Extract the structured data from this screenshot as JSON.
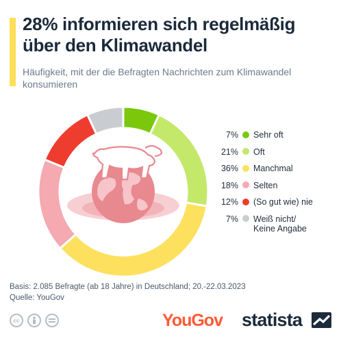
{
  "header": {
    "title": "28% informieren sich regelmäßig über den Klimawandel",
    "subtitle": "Häufigkeit, mit der die Befragten Nachrichten zum Klimawandel konsumieren"
  },
  "chart_data": {
    "type": "pie",
    "title": "28% informieren sich regelmäßig über den Klimawandel",
    "subtitle": "Häufigkeit, mit der die Befragten Nachrichten zum Klimawandel konsumieren",
    "unit": "%",
    "legend_position": "right",
    "categories": [
      "Sehr oft",
      "Oft",
      "Manchmal",
      "Selten",
      "(So gut wie) nie",
      "Weiß nicht/ Keine Angabe"
    ],
    "values": [
      7,
      21,
      36,
      18,
      12,
      7
    ],
    "colors": [
      "#7ac70c",
      "#c4e86a",
      "#fde05e",
      "#f5a9b1",
      "#ee3d2e",
      "#c9ccd0"
    ],
    "value_labels": [
      "7%",
      "21%",
      "36%",
      "18%",
      "12%",
      "7%"
    ],
    "center_illustration": "polar-bear-on-globe-icon"
  },
  "footer": {
    "basis": "Basis: 2.085 Befragte (ab 18 Jahre) in Deutschland; 20.-22.03.2023",
    "quelle": "Quelle: YouGov",
    "license_icons": [
      "cc-icon",
      "person-icon",
      "equals-icon"
    ],
    "source_logo": "YouGov",
    "brand": "statista"
  }
}
